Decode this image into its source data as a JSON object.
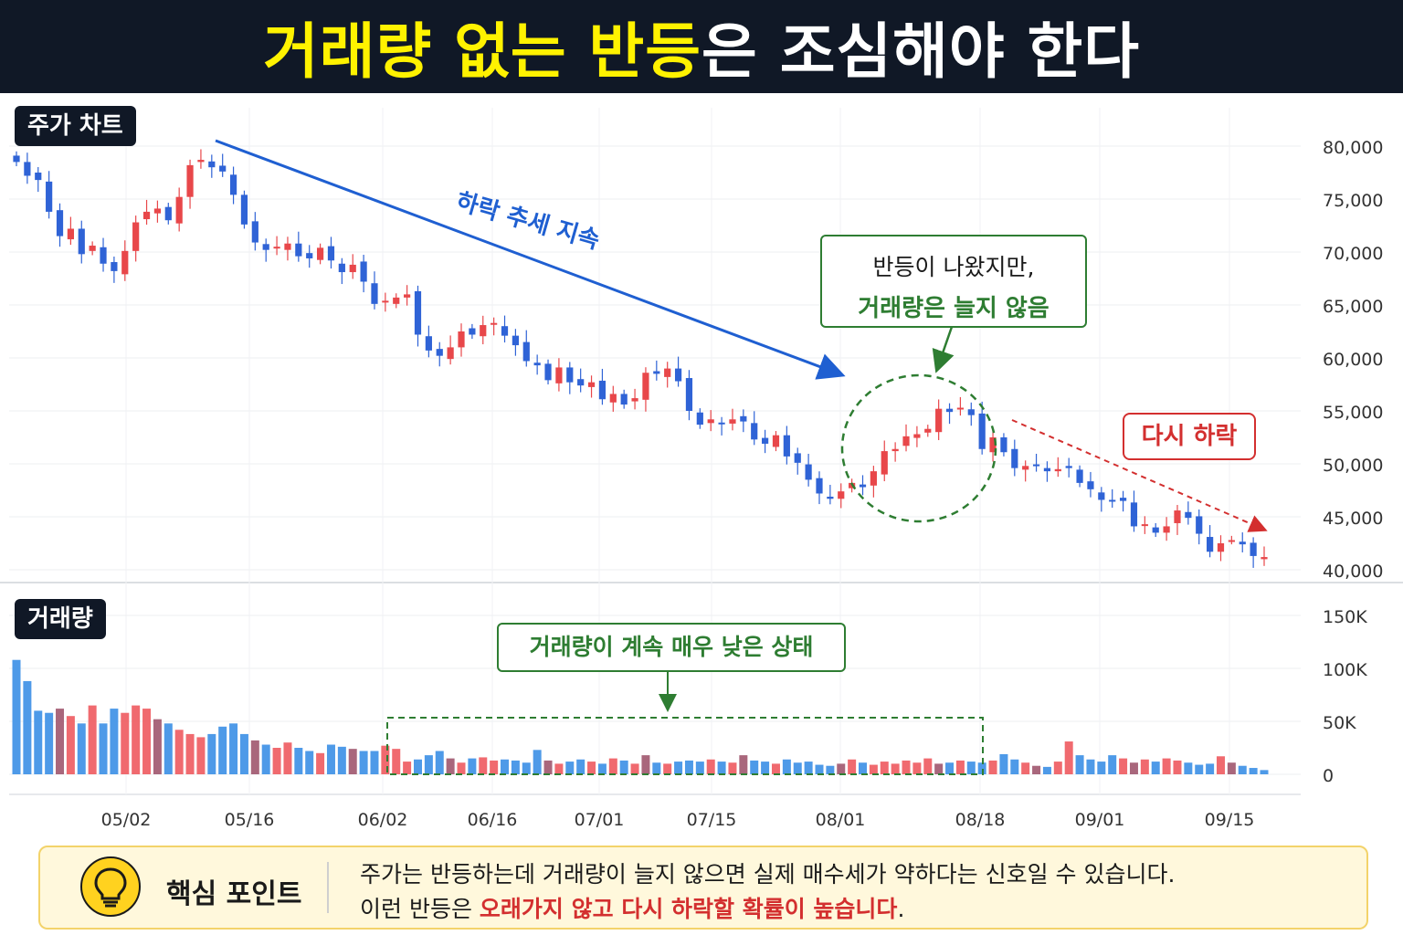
{
  "title": {
    "highlight": "거래량 없는 반등",
    "rest": "은 조심해야 한다"
  },
  "panels": {
    "price_tag": "주가 차트",
    "volume_tag": "거래량"
  },
  "annotations": {
    "trend": "하락 추세 지속",
    "rebound_line1": "반등이 나왔지만,",
    "rebound_line2": "거래량은 늘지 않음",
    "fall_again": "다시 하락",
    "volume_low": "거래량이 계속 매우 낮은 상태"
  },
  "tip": {
    "title": "핵심 포인트",
    "line1": "주가는 반등하는데 거래량이 늘지 않으면 실제 매수세가 약하다는 신호일 수 있습니다.",
    "line2_prefix": "이런 반등은 ",
    "line2_red": "오래가지 않고 다시 하락할 확률이 높습니다",
    "line2_suffix": "."
  },
  "colors": {
    "up": "#e8474a",
    "down": "#2f63d6",
    "vol_up": "#ee5a5f",
    "vol_down": "#3b8fe6",
    "vol_mixed": "#a0566e",
    "green": "#2e7d32",
    "red": "#d32f2f",
    "blue": "#1f5fd1",
    "header_bg": "#101826",
    "header_highlight": "#fff200"
  },
  "icons": {
    "tip": "lightbulb-icon"
  },
  "chart_data": {
    "type": "candlestick",
    "x_ticks": [
      "05/02",
      "05/16",
      "06/02",
      "06/16",
      "07/01",
      "07/15",
      "08/01",
      "08/18",
      "09/01",
      "09/15"
    ],
    "price_ticks": [
      "80,000",
      "75,000",
      "70,000",
      "65,000",
      "60,000",
      "55,000",
      "50,000",
      "45,000",
      "40,000"
    ],
    "price_range": [
      40000,
      80000
    ],
    "volume_ticks": [
      "150K",
      "100K",
      "50K",
      "0"
    ],
    "volume_range": [
      0,
      150000
    ],
    "close": [
      78500,
      77200,
      76800,
      73800,
      71500,
      72200,
      69800,
      70600,
      68900,
      68200,
      70100,
      72800,
      73800,
      74100,
      73000,
      75200,
      78200,
      78700,
      78000,
      77600,
      75400,
      72600,
      70900,
      70200,
      70500,
      70800,
      69600,
      69400,
      70400,
      69200,
      68100,
      68800,
      67200,
      65100,
      65400,
      65700,
      66000,
      62200,
      60700,
      60200,
      61000,
      62500,
      62200,
      63100,
      63300,
      62100,
      61200,
      59700,
      59300,
      57900,
      59100,
      57700,
      57400,
      57700,
      56100,
      56600,
      55600,
      56200,
      58600,
      58500,
      59000,
      57800,
      55000,
      53700,
      54200,
      53800,
      54200,
      54000,
      52300,
      51900,
      52700,
      50700,
      50100,
      48500,
      47200,
      46700,
      47400,
      48200,
      47800,
      49300,
      51200,
      51400,
      52600,
      52800,
      53300,
      55200,
      54900,
      55300,
      54600,
      51400,
      52500,
      51100,
      49600,
      49800,
      49900,
      49300,
      49500,
      49600,
      48200,
      47600,
      46600,
      46500,
      46500,
      44100,
      44300,
      43500,
      44100,
      45600,
      44900,
      43400,
      41700,
      42500,
      42800,
      42400,
      41300,
      41200
    ],
    "volume": [
      108000,
      88000,
      60000,
      58000,
      62000,
      55000,
      48000,
      65000,
      48000,
      62000,
      58000,
      65000,
      62000,
      52000,
      48000,
      42000,
      38000,
      35000,
      38000,
      45000,
      48000,
      38000,
      32000,
      28000,
      25000,
      30000,
      25000,
      22000,
      20000,
      28000,
      26000,
      24000,
      22000,
      22000,
      27000,
      24000,
      12000,
      14000,
      18000,
      22000,
      15000,
      11000,
      15000,
      16000,
      13000,
      14000,
      13000,
      11000,
      23000,
      13000,
      10000,
      12000,
      14000,
      12000,
      10000,
      15000,
      13000,
      10000,
      18000,
      11000,
      10000,
      12000,
      13000,
      12000,
      14000,
      12000,
      11000,
      18000,
      13000,
      12000,
      10000,
      14000,
      11000,
      12000,
      9000,
      8000,
      10000,
      14000,
      11000,
      9000,
      12000,
      10000,
      13000,
      11000,
      15000,
      10000,
      11000,
      13000,
      12000,
      11000,
      13000,
      19000,
      14000,
      11000,
      8000,
      7000,
      12000,
      31000,
      18000,
      14000,
      12000,
      18000,
      15000,
      11000,
      14000,
      12000,
      15000,
      13000,
      11000,
      9000,
      10000,
      17000,
      11000,
      8000,
      6000,
      4000
    ]
  }
}
